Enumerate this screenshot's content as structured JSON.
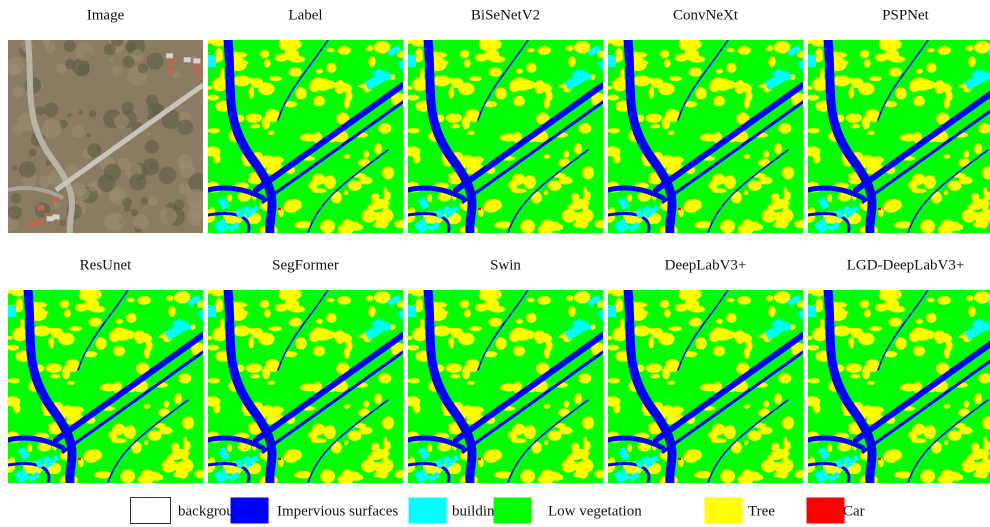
{
  "panels": [
    {
      "title": "Image"
    },
    {
      "title": "Label"
    },
    {
      "title": "BiSeNetV2"
    },
    {
      "title": "ConvNeXt"
    },
    {
      "title": "PSPNet"
    },
    {
      "title": "ResUnet"
    },
    {
      "title": "SegFormer"
    },
    {
      "title": "Swin"
    },
    {
      "title": "DeepLabV3+"
    },
    {
      "title": "LGD-DeepLabV3+"
    }
  ],
  "legend": [
    {
      "label": "background",
      "color": "#ffffff"
    },
    {
      "label": "Impervious surfaces",
      "color": "#0000ff"
    },
    {
      "label": "building",
      "color": "#00ffff"
    },
    {
      "label": "Low vegetation",
      "color": "#00ff00"
    },
    {
      "label": "Tree",
      "color": "#ffff00"
    },
    {
      "label": "Car",
      "color": "#ff0000"
    }
  ]
}
